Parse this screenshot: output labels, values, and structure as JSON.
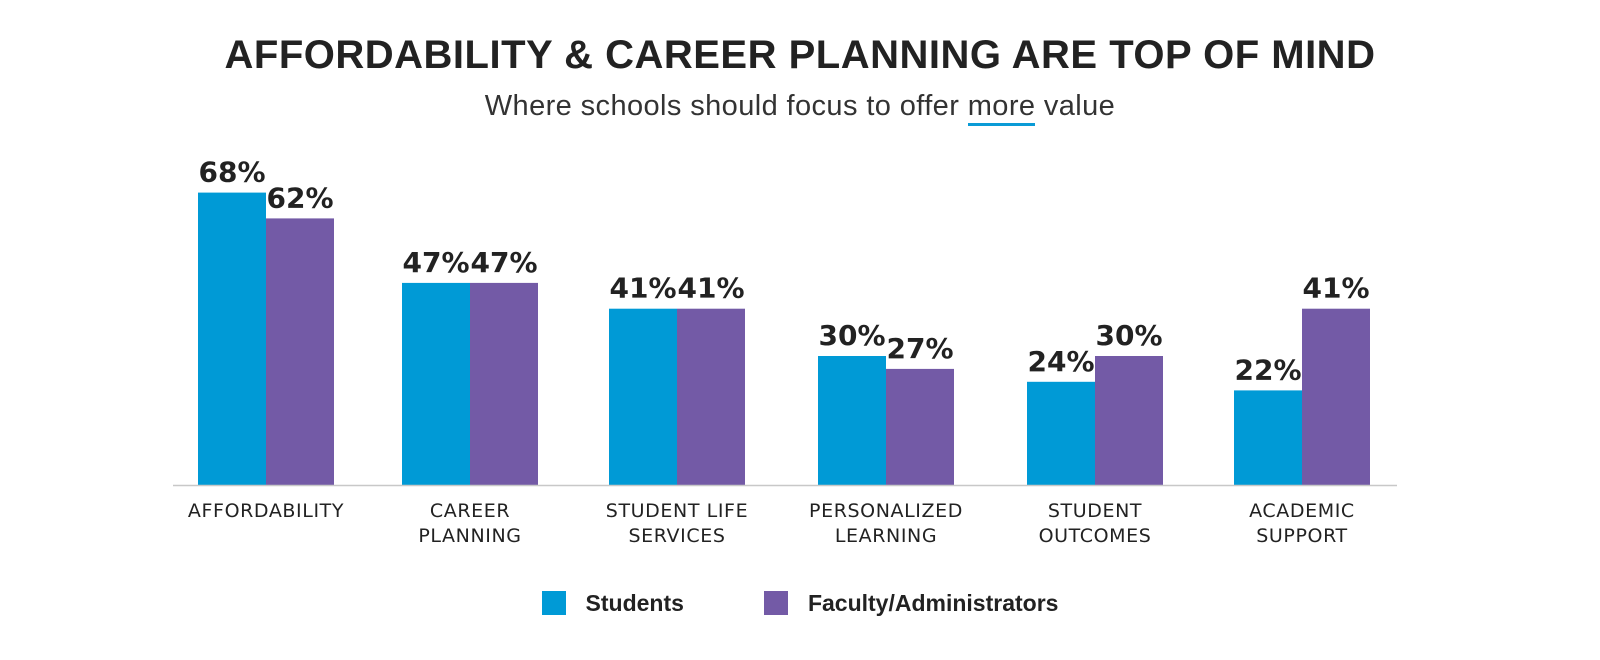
{
  "chart_data": {
    "type": "bar",
    "title": "AFFORDABILITY & CAREER PLANNING ARE TOP OF MIND",
    "subtitle_pre": "Where schools should focus to offer ",
    "subtitle_emphasis": "more",
    "subtitle_post": " value",
    "categories": [
      [
        "AFFORDABILITY"
      ],
      [
        "CAREER",
        "PLANNING"
      ],
      [
        "STUDENT LIFE",
        "SERVICES"
      ],
      [
        "PERSONALIZED",
        "LEARNING"
      ],
      [
        "STUDENT",
        "OUTCOMES"
      ],
      [
        "ACADEMIC",
        "SUPPORT"
      ]
    ],
    "series": [
      {
        "name": "Students",
        "values": [
          68,
          47,
          41,
          30,
          24,
          22
        ],
        "color": "#009ad6"
      },
      {
        "name": "Faculty/Administrators",
        "values": [
          62,
          47,
          41,
          27,
          30,
          41
        ],
        "color": "#735aa6"
      }
    ],
    "value_suffix": "%",
    "ylim": [
      0,
      100
    ],
    "grid": false,
    "legend_position": "bottom-center",
    "baseline_color": "#c8c8c8"
  }
}
